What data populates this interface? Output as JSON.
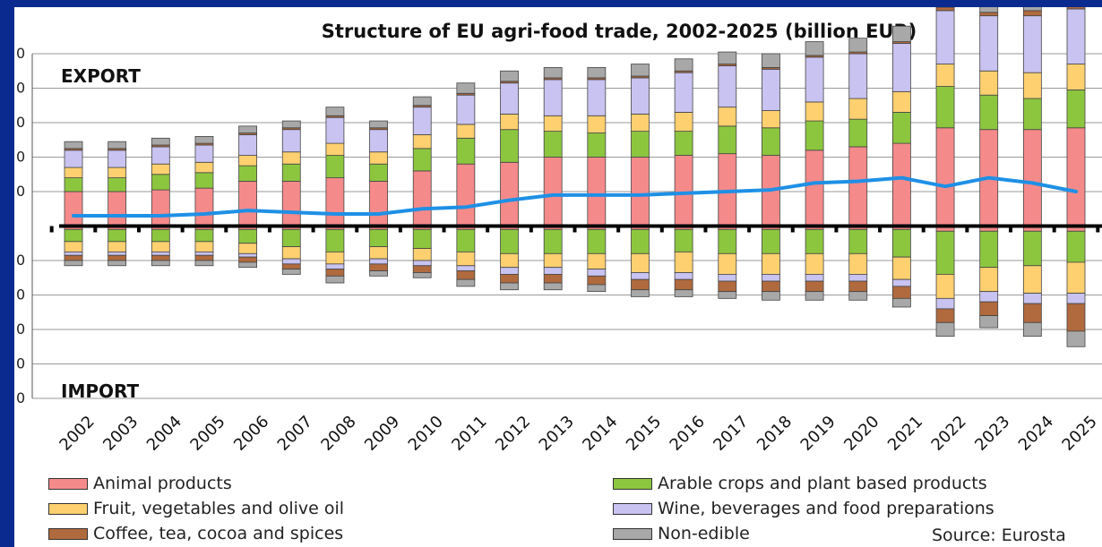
{
  "chart_data": {
    "type": "bar",
    "title": "Structure of EU agri-food trade, 2002-2025 (billion EUR)",
    "annotations": {
      "export": "EXPORT",
      "import": "IMPORT"
    },
    "categories": [
      "2002",
      "2003",
      "2004",
      "2005",
      "2006",
      "2007",
      "2008",
      "2009",
      "2010",
      "2011",
      "2012",
      "2013",
      "2014",
      "2015",
      "2016",
      "2017",
      "2018",
      "2019",
      "2020",
      "2021",
      "2022",
      "2023",
      "2024",
      "2025"
    ],
    "export_series": [
      {
        "name": "Animal products",
        "color": "#f58a8a",
        "values": [
          20,
          20,
          21,
          22,
          26,
          26,
          28,
          26,
          32,
          36,
          37,
          40,
          40,
          40,
          41,
          42,
          41,
          44,
          46,
          48,
          57,
          56,
          56,
          57
        ]
      },
      {
        "name": "Arable crops and plant based products",
        "color": "#8cc63f",
        "values": [
          8,
          8,
          9,
          9,
          9,
          10,
          13,
          10,
          13,
          15,
          19,
          15,
          14,
          15,
          14,
          16,
          16,
          17,
          16,
          18,
          24,
          20,
          18,
          22
        ]
      },
      {
        "name": "Fruit, vegetables and olive oil",
        "color": "#ffd070",
        "values": [
          6,
          6,
          6,
          6,
          6,
          7,
          7,
          7,
          8,
          8,
          9,
          9,
          10,
          10,
          11,
          11,
          10,
          11,
          12,
          12,
          13,
          14,
          15,
          15
        ]
      },
      {
        "name": "Wine, beverages and food preparations",
        "color": "#c8c3f0",
        "values": [
          10,
          10,
          10,
          10,
          12,
          13,
          15,
          13,
          16,
          17,
          18,
          21,
          21,
          21,
          23,
          24,
          24,
          26,
          26,
          28,
          31,
          32,
          33,
          32
        ]
      },
      {
        "name": "Coffee, tea, cocoa and spices",
        "color": "#b06a3e",
        "values": [
          1,
          1,
          1,
          1,
          1,
          1,
          1,
          1,
          1,
          1,
          1,
          1,
          1,
          1,
          1,
          1,
          1,
          1,
          1,
          1,
          2,
          2,
          3,
          3
        ]
      },
      {
        "name": "Non-edible",
        "color": "#a8a8a8",
        "values": [
          4,
          4,
          4,
          4,
          4,
          4,
          5,
          4,
          5,
          6,
          6,
          6,
          6,
          7,
          7,
          7,
          8,
          8,
          8,
          9,
          10,
          10,
          10,
          10
        ]
      }
    ],
    "import_series": [
      {
        "name": "Animal products",
        "color": "#f58a8a",
        "values": [
          -2,
          -2,
          -2,
          -2,
          -2,
          -2,
          -2,
          -2,
          -2,
          -2,
          -2,
          -2,
          -2,
          -2,
          -2,
          -2,
          -2,
          -2,
          -2,
          -2,
          -3,
          -3,
          -3,
          -3
        ]
      },
      {
        "name": "Arable crops and plant based products",
        "color": "#8cc63f",
        "values": [
          -7,
          -7,
          -7,
          -7,
          -8,
          -10,
          -13,
          -10,
          -11,
          -13,
          -14,
          -14,
          -14,
          -14,
          -13,
          -14,
          -14,
          -14,
          -14,
          -16,
          -25,
          -21,
          -20,
          -18
        ]
      },
      {
        "name": "Fruit, vegetables and olive oil",
        "color": "#ffd070",
        "values": [
          -6,
          -6,
          -6,
          -6,
          -6,
          -7,
          -7,
          -7,
          -7,
          -8,
          -8,
          -8,
          -9,
          -11,
          -12,
          -12,
          -12,
          -12,
          -12,
          -13,
          -14,
          -14,
          -16,
          -18
        ]
      },
      {
        "name": "Wine, beverages and food preparations",
        "color": "#c8c3f0",
        "values": [
          -2,
          -2,
          -2,
          -2,
          -2,
          -3,
          -3,
          -3,
          -3,
          -3,
          -4,
          -4,
          -4,
          -4,
          -4,
          -4,
          -4,
          -4,
          -4,
          -4,
          -6,
          -6,
          -6,
          -6
        ]
      },
      {
        "name": "Coffee, tea, cocoa and spices",
        "color": "#b06a3e",
        "values": [
          -3,
          -3,
          -3,
          -3,
          -3,
          -3,
          -4,
          -4,
          -4,
          -5,
          -5,
          -5,
          -5,
          -6,
          -6,
          -6,
          -6,
          -6,
          -6,
          -7,
          -8,
          -8,
          -11,
          -16
        ]
      },
      {
        "name": "Non-edible",
        "color": "#a8a8a8",
        "values": [
          -3,
          -3,
          -3,
          -3,
          -3,
          -3,
          -4,
          -3,
          -3,
          -4,
          -4,
          -4,
          -4,
          -4,
          -4,
          -4,
          -5,
          -5,
          -5,
          -5,
          -8,
          -7,
          -8,
          -9
        ]
      }
    ],
    "balance_line": {
      "color": "#1e90e6",
      "values": [
        6,
        6,
        6,
        7,
        9,
        8,
        7,
        7,
        10,
        11,
        15,
        18,
        18,
        18,
        19,
        20,
        21,
        25,
        26,
        28,
        23,
        28,
        25,
        20
      ]
    },
    "ylim": [
      -100,
      100
    ],
    "y_tick_step": 20,
    "grid": true,
    "legend_position": "bottom",
    "source": "Source: Eurosta"
  }
}
